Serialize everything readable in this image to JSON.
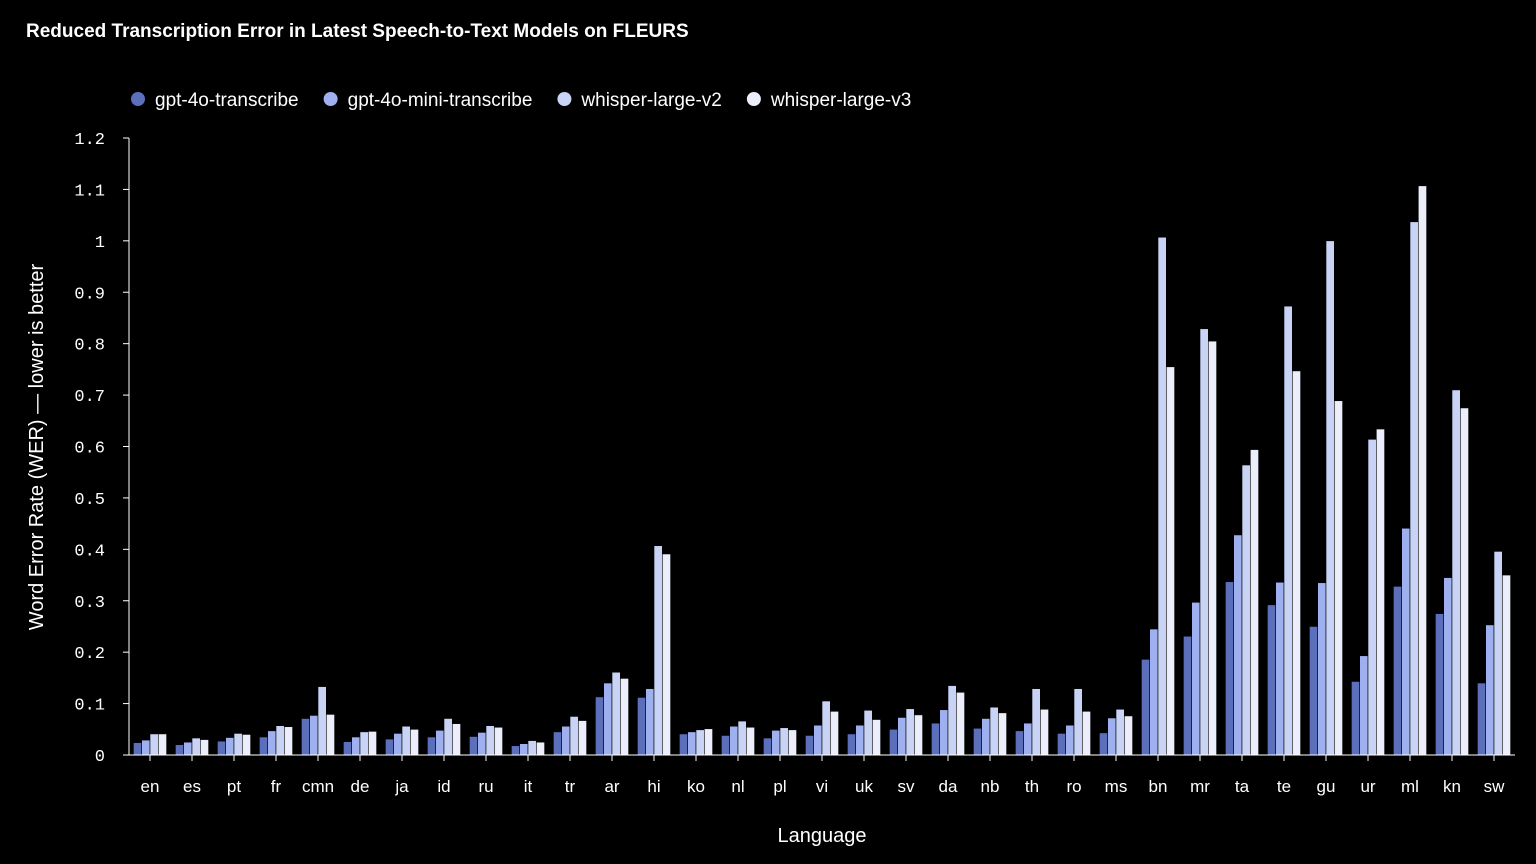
{
  "chart_data": {
    "type": "bar",
    "title": "Reduced Transcription Error in Latest Speech-to-Text Models on FLEURS",
    "xlabel": "Language",
    "ylabel": "Word Error Rate (WER) — lower is better",
    "ylim": [
      0,
      1.2
    ],
    "yticks": [
      "0",
      "0.1",
      "0.2",
      "0.3",
      "0.4",
      "0.5",
      "0.6",
      "0.7",
      "0.8",
      "0.9",
      "1",
      "1.1",
      "1.2"
    ],
    "grid": false,
    "legend_position": "top-left",
    "categories": [
      "en",
      "es",
      "pt",
      "fr",
      "cmn",
      "de",
      "ja",
      "id",
      "ru",
      "it",
      "tr",
      "ar",
      "hi",
      "ko",
      "nl",
      "pl",
      "vi",
      "uk",
      "sv",
      "da",
      "nb",
      "th",
      "ro",
      "ms",
      "bn",
      "mr",
      "ta",
      "te",
      "gu",
      "ur",
      "ml",
      "kn",
      "sw"
    ],
    "series": [
      {
        "name": "gpt-4o-transcribe",
        "color": "#5b6fbb",
        "values": [
          0.024,
          0.02,
          0.027,
          0.035,
          0.071,
          0.026,
          0.031,
          0.035,
          0.036,
          0.018,
          0.045,
          0.113,
          0.112,
          0.041,
          0.038,
          0.033,
          0.038,
          0.041,
          0.05,
          0.062,
          0.052,
          0.047,
          0.042,
          0.043,
          0.186,
          0.231,
          0.337,
          0.292,
          0.25,
          0.143,
          0.328,
          0.275,
          0.14
        ]
      },
      {
        "name": "gpt-4o-mini-transcribe",
        "color": "#9eb0ef",
        "values": [
          0.029,
          0.025,
          0.034,
          0.047,
          0.077,
          0.035,
          0.042,
          0.048,
          0.044,
          0.022,
          0.056,
          0.14,
          0.129,
          0.045,
          0.056,
          0.048,
          0.058,
          0.058,
          0.073,
          0.088,
          0.071,
          0.062,
          0.058,
          0.072,
          0.245,
          0.297,
          0.428,
          0.336,
          0.335,
          0.193,
          0.441,
          0.345,
          0.253
        ]
      },
      {
        "name": "whisper-large-v2",
        "color": "#c9d3f6",
        "values": [
          0.041,
          0.033,
          0.042,
          0.057,
          0.133,
          0.045,
          0.056,
          0.071,
          0.057,
          0.028,
          0.075,
          0.161,
          0.407,
          0.049,
          0.066,
          0.053,
          0.105,
          0.087,
          0.09,
          0.135,
          0.093,
          0.129,
          0.129,
          0.089,
          1.007,
          0.829,
          0.564,
          0.873,
          1.0,
          0.614,
          1.037,
          0.71,
          0.396
        ]
      },
      {
        "name": "whisper-large-v3",
        "color": "#eceffb",
        "values": [
          0.041,
          0.03,
          0.04,
          0.055,
          0.079,
          0.046,
          0.05,
          0.061,
          0.054,
          0.025,
          0.067,
          0.149,
          0.391,
          0.051,
          0.054,
          0.049,
          0.085,
          0.069,
          0.078,
          0.122,
          0.082,
          0.089,
          0.085,
          0.076,
          0.755,
          0.805,
          0.594,
          0.747,
          0.689,
          0.634,
          1.107,
          0.675,
          0.35
        ]
      }
    ]
  }
}
